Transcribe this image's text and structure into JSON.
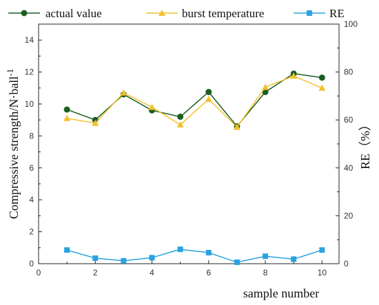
{
  "chart_data": {
    "type": "line",
    "x": [
      1,
      2,
      3,
      4,
      5,
      6,
      7,
      8,
      9,
      10
    ],
    "xlabel": "sample number",
    "xlim": [
      0,
      10.6
    ],
    "xticks": [
      "0",
      "2",
      "4",
      "6",
      "8",
      "10"
    ],
    "ylabel_left_main": "Compressive strength/N·ball",
    "ylabel_left_sup": "-1",
    "ylim_left": [
      0,
      15
    ],
    "yticks_left": [
      "0",
      "2",
      "4",
      "6",
      "8",
      "10",
      "12",
      "14"
    ],
    "ylabel_right": "RE（%）",
    "ylim_right": [
      0,
      100
    ],
    "yticks_right": [
      "0",
      "20",
      "40",
      "60",
      "80",
      "100"
    ],
    "series": [
      {
        "name": "actual value",
        "axis": "left",
        "color": "#1b5e20",
        "marker": "circle",
        "values": [
          9.65,
          9.0,
          10.6,
          9.6,
          9.2,
          10.75,
          8.6,
          10.75,
          11.9,
          11.65
        ]
      },
      {
        "name": "burst temperature",
        "axis": "left",
        "color": "#f2c12e",
        "marker": "triangle",
        "values": [
          9.1,
          8.8,
          10.7,
          9.8,
          8.7,
          10.3,
          8.55,
          11.05,
          11.75,
          11.0
        ]
      },
      {
        "name": "RE",
        "axis": "right",
        "color": "#29a3e0",
        "marker": "square",
        "values": [
          5.7,
          2.3,
          1.2,
          2.5,
          6.0,
          4.6,
          0.6,
          3.1,
          1.9,
          5.7
        ]
      }
    ],
    "legend_position": "top",
    "grid": false
  }
}
